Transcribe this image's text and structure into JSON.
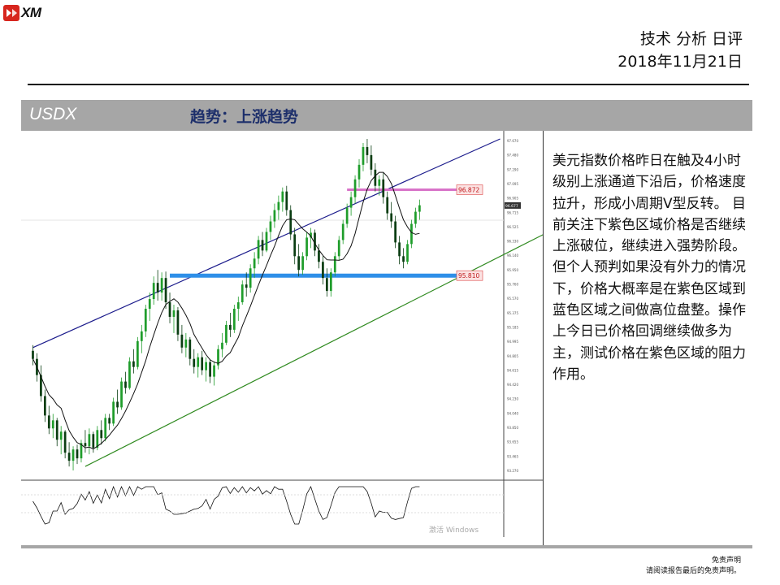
{
  "brand": {
    "name": "XM"
  },
  "header": {
    "title_line1": "技术 分析 日评",
    "title_line2": "2018年11月21日"
  },
  "section": {
    "symbol": "USDX",
    "trend_label": "趋势：上涨趋势"
  },
  "commentary": "美元指数价格昨日在触及4小时级别上涨通道下沿后，价格速度拉升，形成小周期V型反转。 目前关注下紫色区域价格是否继续上涨破位，继续进入强势阶段。但个人预判如果没有外力的情况下，价格大概率是在紫色区域到蓝色区域之间做高位盘整。操作上今日已价格回调继续做多为主，测试价格在紫色区域的阻力作用。",
  "footer": {
    "disclaimer_title": "免责声明",
    "disclaimer_text": "请阅读报告最后的免责声明。"
  },
  "chart_watermark": "激活 Windows",
  "colors": {
    "bull": "#1f9d2b",
    "bear": "#0a3d12",
    "resistance": "#d873c8",
    "support": "#2e8fe8",
    "channel_upper": "#1c1c8c",
    "channel_lower": "#2f8a1f",
    "ma": "#111111"
  },
  "chart_data": {
    "type": "candlestick",
    "title": "",
    "ylim": [
      93.3,
      97.5
    ],
    "y_ticks": [
      "97.670",
      "97.480",
      "97.290",
      "97.095",
      "96.905",
      "96.715",
      "96.525",
      "96.330",
      "96.140",
      "95.950",
      "95.760",
      "95.570",
      "95.375",
      "95.185",
      "94.995",
      "94.805",
      "94.615",
      "94.420",
      "94.230",
      "94.040",
      "93.850",
      "93.655",
      "93.465",
      "93.270"
    ],
    "current_price": "96.677",
    "levels": [
      {
        "name": "resistance",
        "value": 96.872,
        "label": "96.872",
        "color": "#d873c8"
      },
      {
        "name": "support",
        "value": 95.81,
        "label": "95.810",
        "color": "#2e8fe8"
      }
    ],
    "channel": {
      "upper": [
        [
          0,
          94.92
        ],
        [
          116,
          97.5
        ]
      ],
      "lower": [
        [
          13,
          93.45
        ],
        [
          128,
          96.35
        ]
      ]
    },
    "candles": [
      [
        94.88,
        94.95,
        94.7,
        94.78
      ],
      [
        94.78,
        94.85,
        94.5,
        94.58
      ],
      [
        94.58,
        94.7,
        94.25,
        94.32
      ],
      [
        94.32,
        94.4,
        94.0,
        94.08
      ],
      [
        94.08,
        94.2,
        93.85,
        93.92
      ],
      [
        93.92,
        94.1,
        93.8,
        94.02
      ],
      [
        94.02,
        94.05,
        93.7,
        93.78
      ],
      [
        93.78,
        93.95,
        93.6,
        93.88
      ],
      [
        93.88,
        93.9,
        93.55,
        93.62
      ],
      [
        93.62,
        93.75,
        93.45,
        93.52
      ],
      [
        93.52,
        93.7,
        93.4,
        93.66
      ],
      [
        93.66,
        93.72,
        93.48,
        93.55
      ],
      [
        93.55,
        93.78,
        93.5,
        93.74
      ],
      [
        93.74,
        93.9,
        93.62,
        93.7
      ],
      [
        93.7,
        93.92,
        93.6,
        93.85
      ],
      [
        93.85,
        93.88,
        93.62,
        93.68
      ],
      [
        93.68,
        93.95,
        93.65,
        93.9
      ],
      [
        93.9,
        94.02,
        93.72,
        93.8
      ],
      [
        93.8,
        94.1,
        93.76,
        94.05
      ],
      [
        94.05,
        94.1,
        93.9,
        93.98
      ],
      [
        93.98,
        94.3,
        93.95,
        94.25
      ],
      [
        94.25,
        94.4,
        94.1,
        94.18
      ],
      [
        94.18,
        94.55,
        94.15,
        94.5
      ],
      [
        94.5,
        94.62,
        94.35,
        94.42
      ],
      [
        94.42,
        94.8,
        94.4,
        94.75
      ],
      [
        94.75,
        94.9,
        94.6,
        94.68
      ],
      [
        94.68,
        95.05,
        94.65,
        95.0
      ],
      [
        95.0,
        95.2,
        94.85,
        95.12
      ],
      [
        95.12,
        95.45,
        95.05,
        95.4
      ],
      [
        95.4,
        95.6,
        95.25,
        95.52
      ],
      [
        95.52,
        95.8,
        95.45,
        95.72
      ],
      [
        95.72,
        95.88,
        95.5,
        95.6
      ],
      [
        95.6,
        95.85,
        95.5,
        95.78
      ],
      [
        95.78,
        95.86,
        95.4,
        95.48
      ],
      [
        95.48,
        95.6,
        95.22,
        95.3
      ],
      [
        95.3,
        95.45,
        95.1,
        95.38
      ],
      [
        95.38,
        95.42,
        95.0,
        95.08
      ],
      [
        95.08,
        95.2,
        94.85,
        94.92
      ],
      [
        94.92,
        95.1,
        94.8,
        95.02
      ],
      [
        95.02,
        95.05,
        94.7,
        94.78
      ],
      [
        94.78,
        94.9,
        94.6,
        94.68
      ],
      [
        94.68,
        94.85,
        94.55,
        94.8
      ],
      [
        94.8,
        94.88,
        94.58,
        94.64
      ],
      [
        94.64,
        94.8,
        94.5,
        94.74
      ],
      [
        94.74,
        94.78,
        94.48,
        94.56
      ],
      [
        94.56,
        94.75,
        94.45,
        94.7
      ],
      [
        94.7,
        94.95,
        94.65,
        94.9
      ],
      [
        94.9,
        95.1,
        94.8,
        94.98
      ],
      [
        94.98,
        95.25,
        94.95,
        95.2
      ],
      [
        95.2,
        95.35,
        95.05,
        95.14
      ],
      [
        95.14,
        95.45,
        95.1,
        95.4
      ],
      [
        95.4,
        95.55,
        95.25,
        95.48
      ],
      [
        95.48,
        95.75,
        95.45,
        95.7
      ],
      [
        95.7,
        95.85,
        95.55,
        95.66
      ],
      [
        95.66,
        95.95,
        95.6,
        95.9
      ],
      [
        95.9,
        96.1,
        95.78,
        96.02
      ],
      [
        96.02,
        96.3,
        95.95,
        96.25
      ],
      [
        96.25,
        96.35,
        96.05,
        96.12
      ],
      [
        96.12,
        96.4,
        96.1,
        96.35
      ],
      [
        96.35,
        96.55,
        96.25,
        96.48
      ],
      [
        96.48,
        96.7,
        96.4,
        96.62
      ],
      [
        96.62,
        96.8,
        96.5,
        96.72
      ],
      [
        96.72,
        96.9,
        96.6,
        96.85
      ],
      [
        96.85,
        96.92,
        96.55,
        96.62
      ],
      [
        96.62,
        96.68,
        96.25,
        96.32
      ],
      [
        96.32,
        96.4,
        95.95,
        96.05
      ],
      [
        96.05,
        96.2,
        95.8,
        95.88
      ],
      [
        95.88,
        96.1,
        95.82,
        96.05
      ],
      [
        96.05,
        96.35,
        96.0,
        96.28
      ],
      [
        96.28,
        96.4,
        96.15,
        96.34
      ],
      [
        96.34,
        96.38,
        96.05,
        96.12
      ],
      [
        96.12,
        96.2,
        95.9,
        95.98
      ],
      [
        95.98,
        96.05,
        95.7,
        95.78
      ],
      [
        95.78,
        95.9,
        95.55,
        95.62
      ],
      [
        95.62,
        95.9,
        95.55,
        95.85
      ],
      [
        95.85,
        96.1,
        95.8,
        96.05
      ],
      [
        96.05,
        96.3,
        96.0,
        96.25
      ],
      [
        96.25,
        96.5,
        96.2,
        96.45
      ],
      [
        96.45,
        96.7,
        96.4,
        96.65
      ],
      [
        96.65,
        96.85,
        96.55,
        96.78
      ],
      [
        96.78,
        97.05,
        96.7,
        97.0
      ],
      [
        97.0,
        97.25,
        96.9,
        97.18
      ],
      [
        97.18,
        97.45,
        97.1,
        97.4
      ],
      [
        97.4,
        97.5,
        97.2,
        97.3
      ],
      [
        97.3,
        97.42,
        97.05,
        97.12
      ],
      [
        97.12,
        97.2,
        96.85,
        96.92
      ],
      [
        96.92,
        97.05,
        96.8,
        97.0
      ],
      [
        97.0,
        97.08,
        96.7,
        96.78
      ],
      [
        96.78,
        96.85,
        96.5,
        96.58
      ],
      [
        96.58,
        96.72,
        96.4,
        96.48
      ],
      [
        96.48,
        96.55,
        96.15,
        96.22
      ],
      [
        96.22,
        96.3,
        95.95,
        96.05
      ],
      [
        96.05,
        96.15,
        95.9,
        95.98
      ],
      [
        95.98,
        96.25,
        95.95,
        96.2
      ],
      [
        96.2,
        96.5,
        96.15,
        96.45
      ],
      [
        96.45,
        96.65,
        96.4,
        96.6
      ],
      [
        96.6,
        96.75,
        96.5,
        96.68
      ]
    ]
  }
}
